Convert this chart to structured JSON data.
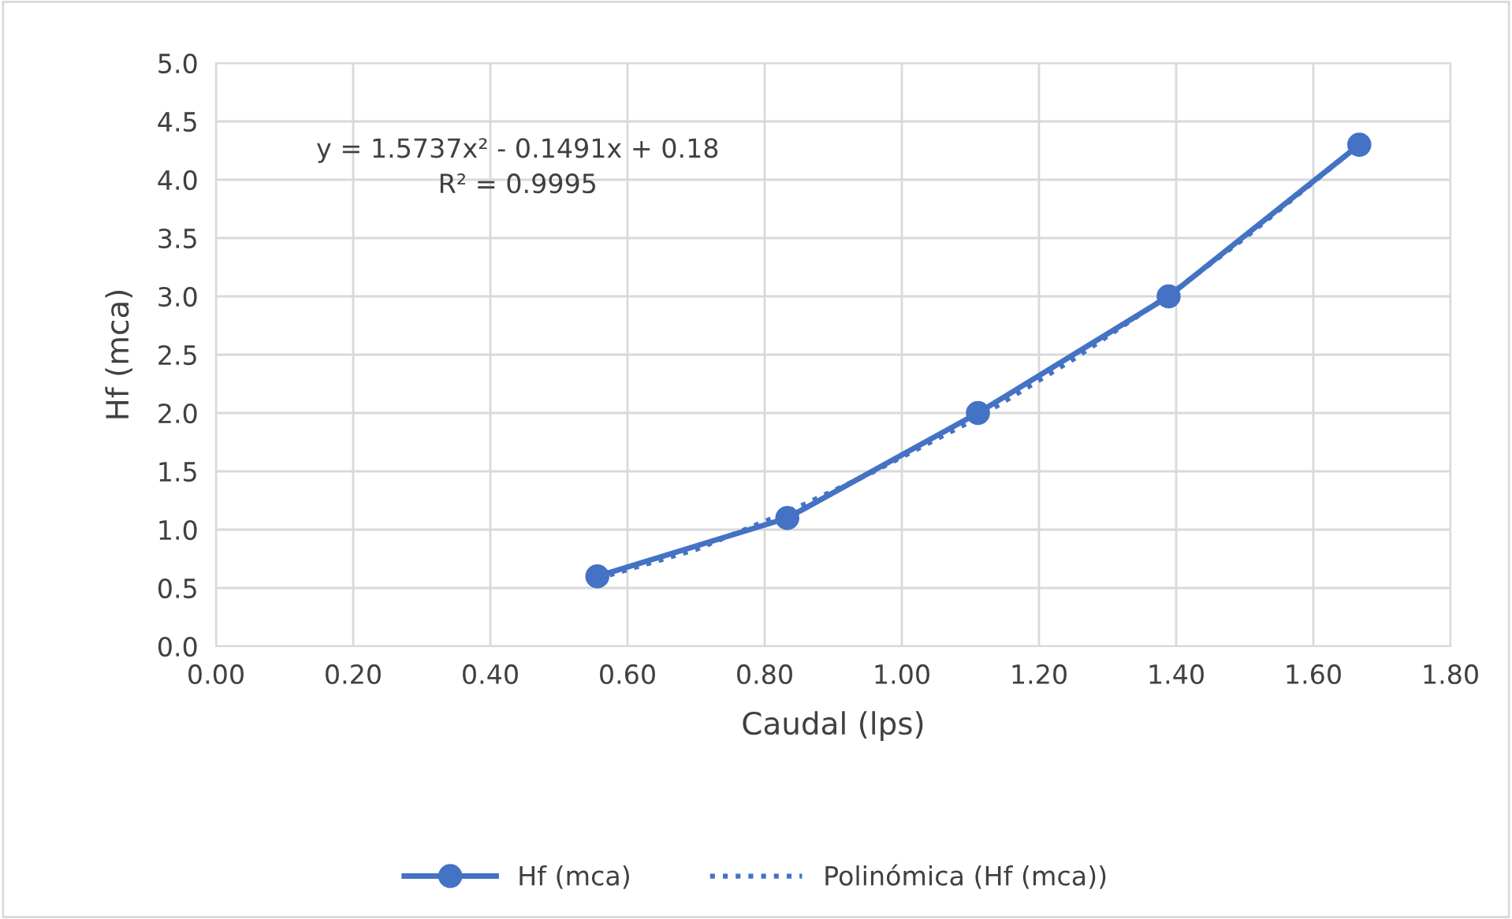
{
  "chart_data": {
    "type": "line",
    "xlabel": "Caudal (lps)",
    "ylabel": "Hf (mca)",
    "annotations": [
      "y = 1.5737x² - 0.1491x + 0.18\nR² = 0.9995"
    ],
    "series": [
      {
        "name": "Hf (mca)",
        "color": "#4472c4",
        "x": [
          0.556,
          0.833,
          1.111,
          1.389,
          1.667
        ],
        "values": [
          0.6,
          1.1,
          2.0,
          3.0,
          4.3
        ],
        "marker": "circle",
        "line_style": "solid"
      },
      {
        "name": "Polinómica (Hf (mca))",
        "color": "#4472c4",
        "x": [
          0.556,
          0.7,
          0.833,
          0.95,
          1.111,
          1.25,
          1.389,
          1.5,
          1.667
        ],
        "values": [
          0.58,
          0.83,
          1.15,
          1.47,
          1.96,
          2.46,
          3.01,
          3.5,
          4.3
        ],
        "marker": "none",
        "line_style": "dotted"
      }
    ],
    "xlim": [
      0,
      1.8
    ],
    "xticks": [
      {
        "value": 0,
        "label": "0.00"
      },
      {
        "value": 0.2,
        "label": "0.20"
      },
      {
        "value": 0.4,
        "label": "0.40"
      },
      {
        "value": 0.6,
        "label": "0.60"
      },
      {
        "value": 0.8,
        "label": "0.80"
      },
      {
        "value": 1.0,
        "label": "1.00"
      },
      {
        "value": 1.2,
        "label": "1.20"
      },
      {
        "value": 1.4,
        "label": "1.40"
      },
      {
        "value": 1.6,
        "label": "1.60"
      },
      {
        "value": 1.8,
        "label": "1.80"
      }
    ],
    "ylim": [
      0,
      5
    ],
    "yticks": [
      {
        "value": 0,
        "label": "0.0"
      },
      {
        "value": 0.5,
        "label": "0.5"
      },
      {
        "value": 1,
        "label": "1.0"
      },
      {
        "value": 1.5,
        "label": "1.5"
      },
      {
        "value": 2,
        "label": "2.0"
      },
      {
        "value": 2.5,
        "label": "2.5"
      },
      {
        "value": 3,
        "label": "3.0"
      },
      {
        "value": 3.5,
        "label": "3.5"
      },
      {
        "value": 4,
        "label": "4.0"
      },
      {
        "value": 4.5,
        "label": "4.5"
      },
      {
        "value": 5,
        "label": "5.0"
      }
    ],
    "grid": true,
    "legend": "bottom"
  }
}
